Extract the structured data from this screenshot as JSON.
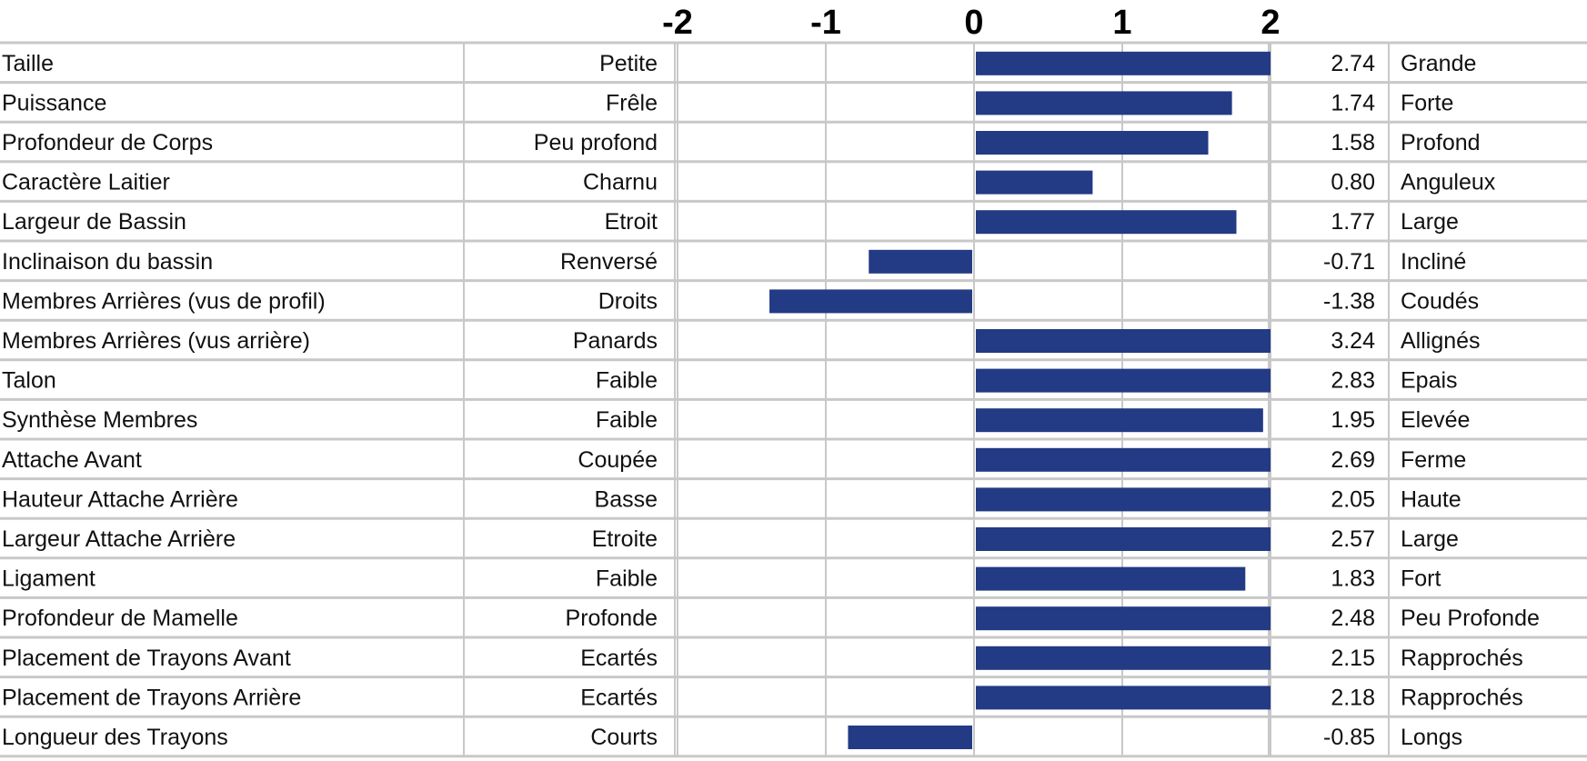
{
  "chart_data": {
    "type": "bar",
    "orientation": "horizontal",
    "title": "",
    "xlim": [
      -2,
      2
    ],
    "x_ticks": [
      "-2",
      "-1",
      "0",
      "1",
      "2"
    ],
    "bar_color": "#233a84",
    "grid": true,
    "rows": [
      {
        "trait": "Taille",
        "low": "Petite",
        "value": 2.74,
        "value_label": "2.74",
        "high": "Grande"
      },
      {
        "trait": "Puissance",
        "low": "Frêle",
        "value": 1.74,
        "value_label": "1.74",
        "high": "Forte"
      },
      {
        "trait": "Profondeur de Corps",
        "low": "Peu profond",
        "value": 1.58,
        "value_label": "1.58",
        "high": "Profond"
      },
      {
        "trait": "Caractère Laitier",
        "low": "Charnu",
        "value": 0.8,
        "value_label": "0.80",
        "high": "Anguleux"
      },
      {
        "trait": "Largeur de Bassin",
        "low": "Etroit",
        "value": 1.77,
        "value_label": "1.77",
        "high": "Large"
      },
      {
        "trait": "Inclinaison du bassin",
        "low": "Renversé",
        "value": -0.71,
        "value_label": "-0.71",
        "high": "Incliné"
      },
      {
        "trait": "Membres Arrières (vus de profil)",
        "low": "Droits",
        "value": -1.38,
        "value_label": "-1.38",
        "high": "Coudés"
      },
      {
        "trait": "Membres Arrières (vus arrière)",
        "low": "Panards",
        "value": 3.24,
        "value_label": "3.24",
        "high": "Allignés"
      },
      {
        "trait": "Talon",
        "low": "Faible",
        "value": 2.83,
        "value_label": "2.83",
        "high": "Epais"
      },
      {
        "trait": "Synthèse Membres",
        "low": "Faible",
        "value": 1.95,
        "value_label": "1.95",
        "high": "Elevée"
      },
      {
        "trait": "Attache Avant",
        "low": "Coupée",
        "value": 2.69,
        "value_label": "2.69",
        "high": "Ferme"
      },
      {
        "trait": "Hauteur Attache Arrière",
        "low": "Basse",
        "value": 2.05,
        "value_label": "2.05",
        "high": "Haute"
      },
      {
        "trait": "Largeur Attache Arrière",
        "low": "Etroite",
        "value": 2.57,
        "value_label": "2.57",
        "high": "Large"
      },
      {
        "trait": "Ligament",
        "low": "Faible",
        "value": 1.83,
        "value_label": "1.83",
        "high": "Fort"
      },
      {
        "trait": "Profondeur de Mamelle",
        "low": "Profonde",
        "value": 2.48,
        "value_label": "2.48",
        "high": "Peu Profonde"
      },
      {
        "trait": "Placement de Trayons Avant",
        "low": "Ecartés",
        "value": 2.15,
        "value_label": "2.15",
        "high": "Rapprochés"
      },
      {
        "trait": "Placement de Trayons Arrière",
        "low": "Ecartés",
        "value": 2.18,
        "value_label": "2.18",
        "high": "Rapprochés"
      },
      {
        "trait": "Longueur des Trayons",
        "low": "Courts",
        "value": -0.85,
        "value_label": "-0.85",
        "high": "Longs"
      }
    ]
  }
}
